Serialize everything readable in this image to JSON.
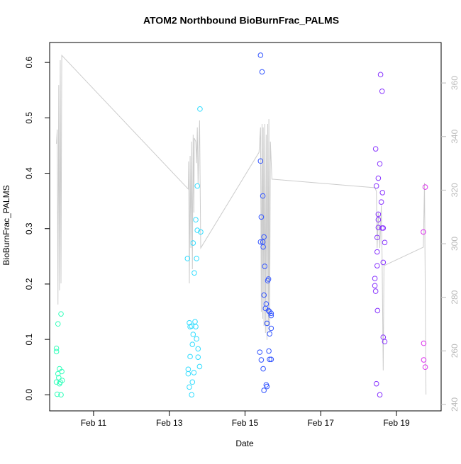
{
  "chart_data": {
    "type": "scatter",
    "title": "ATOM2 Northbound BioBurnFrac_PALMS",
    "x_label": "Date",
    "y_label": "BioBurnFrac_PALMS",
    "xlim": [
      9.84,
      20.18
    ],
    "ylim": [
      -0.029,
      0.636
    ],
    "y2lim": [
      237.6,
      375.1
    ],
    "xticks": [
      {
        "value": 11,
        "label": "Feb 11"
      },
      {
        "value": 13,
        "label": "Feb 13"
      },
      {
        "value": 15,
        "label": "Feb 15"
      },
      {
        "value": 17,
        "label": "Feb 17"
      },
      {
        "value": 19,
        "label": "Feb 19"
      }
    ],
    "yticks": [
      {
        "value": 0,
        "label": "0.0"
      },
      0.1,
      0.2,
      0.3,
      0.4,
      0.5,
      0.6
    ],
    "y2ticks": [
      240,
      260,
      280,
      300,
      320,
      340,
      360
    ],
    "series": [
      {
        "type": "scatter",
        "color": "#33ffbb",
        "x": [
          10.14,
          10.06,
          10.02,
          10.02,
          10.1,
          10.16,
          10.06,
          10.08,
          10.17,
          10.02,
          10.12,
          10.1,
          10.04,
          10.14
        ],
        "values": [
          0.146,
          0.128,
          0.084,
          0.078,
          0.047,
          0.042,
          0.038,
          0.031,
          0.026,
          0.023,
          0.023,
          0.02,
          0.001,
          0.0
        ]
      },
      {
        "type": "scatter",
        "color": "#33ddff",
        "x": [
          13.81,
          13.74,
          13.7,
          13.74,
          13.83,
          13.63,
          13.48,
          13.72,
          13.66,
          13.53,
          13.68,
          13.59,
          13.55,
          13.7,
          13.63,
          13.72,
          13.61,
          13.76,
          13.55,
          13.76,
          13.5,
          13.8,
          13.5,
          13.65,
          13.61,
          13.53,
          13.59
        ],
        "values": [
          0.516,
          0.377,
          0.316,
          0.297,
          0.294,
          0.274,
          0.246,
          0.246,
          0.22,
          0.13,
          0.132,
          0.124,
          0.123,
          0.123,
          0.109,
          0.101,
          0.091,
          0.083,
          0.069,
          0.068,
          0.046,
          0.051,
          0.038,
          0.04,
          0.023,
          0.014,
          0.0
        ]
      },
      {
        "type": "scatter",
        "color": "#3355ff",
        "x": [
          15.41,
          15.45,
          15.41,
          15.47,
          15.43,
          15.5,
          15.41,
          15.47,
          15.48,
          15.52,
          15.62,
          15.6,
          15.5,
          15.56,
          15.54,
          15.62,
          15.65,
          15.69,
          15.69,
          15.58,
          15.69,
          15.65,
          15.39,
          15.63,
          15.65,
          15.69,
          15.43,
          15.48,
          15.58,
          15.56,
          15.5
        ],
        "values": [
          0.613,
          0.583,
          0.422,
          0.359,
          0.321,
          0.285,
          0.276,
          0.276,
          0.267,
          0.232,
          0.209,
          0.206,
          0.18,
          0.164,
          0.156,
          0.152,
          0.15,
          0.147,
          0.143,
          0.129,
          0.12,
          0.11,
          0.077,
          0.079,
          0.064,
          0.064,
          0.063,
          0.047,
          0.015,
          0.018,
          0.008
        ]
      },
      {
        "type": "scatter",
        "color": "#8833ff",
        "x": [
          18.58,
          18.62,
          18.45,
          18.56,
          18.52,
          18.47,
          18.63,
          18.6,
          18.52,
          18.52,
          18.52,
          18.65,
          18.62,
          18.49,
          18.69,
          18.49,
          18.65,
          18.49,
          18.43,
          18.43,
          18.45,
          18.5,
          18.65,
          18.69,
          18.47,
          18.56
        ],
        "values": [
          0.578,
          0.548,
          0.444,
          0.417,
          0.391,
          0.377,
          0.365,
          0.348,
          0.326,
          0.316,
          0.302,
          0.301,
          0.301,
          0.284,
          0.275,
          0.258,
          0.239,
          0.233,
          0.21,
          0.197,
          0.187,
          0.152,
          0.104,
          0.096,
          0.02,
          0.0
        ]
      },
      {
        "type": "scatter",
        "color": "#dd33ee",
        "x": [
          19.76,
          19.71,
          19.72,
          19.72,
          19.76
        ],
        "values": [
          0.375,
          0.294,
          0.093,
          0.063,
          0.05
        ]
      },
      {
        "type": "line",
        "axis": "y2",
        "color": "#cccccc",
        "x": [
          10.02,
          10.04,
          10.06,
          10.08,
          10.1,
          10.12,
          10.14,
          10.16,
          13.5,
          13.51,
          13.53,
          13.55,
          13.57,
          13.59,
          13.61,
          13.63,
          13.65,
          13.66,
          13.7,
          13.72,
          13.74,
          13.76,
          13.8,
          13.83,
          15.37,
          15.41,
          15.43,
          15.45,
          15.47,
          15.48,
          15.5,
          15.52,
          15.54,
          15.56,
          15.58,
          15.6,
          15.62,
          15.63,
          15.65,
          15.67,
          15.71,
          18.43,
          18.47,
          18.49,
          18.52,
          18.56,
          18.6,
          18.62,
          18.65,
          18.67,
          19.71,
          19.74,
          19.78
        ],
        "values": [
          337.3,
          342.6,
          277.3,
          359.2,
          282.6,
          368.5,
          285.2,
          370.3,
          320.4,
          330.7,
          285.2,
          332.8,
          298.4,
          338.1,
          290.5,
          340.7,
          311.6,
          339.4,
          338.1,
          330.1,
          343.4,
          322.2,
          346.0,
          298.4,
          334.1,
          343.4,
          274.6,
          344.7,
          272.0,
          343.4,
          269.3,
          344.7,
          266.7,
          340.7,
          264.1,
          344.7,
          269.3,
          346.5,
          266.7,
          338.1,
          324.1,
          320.9,
          319.6,
          298.4,
          311.6,
          298.4,
          314.3,
          295.8,
          252.7,
          291.8,
          298.7,
          322.7,
          243.7
        ]
      }
    ]
  }
}
